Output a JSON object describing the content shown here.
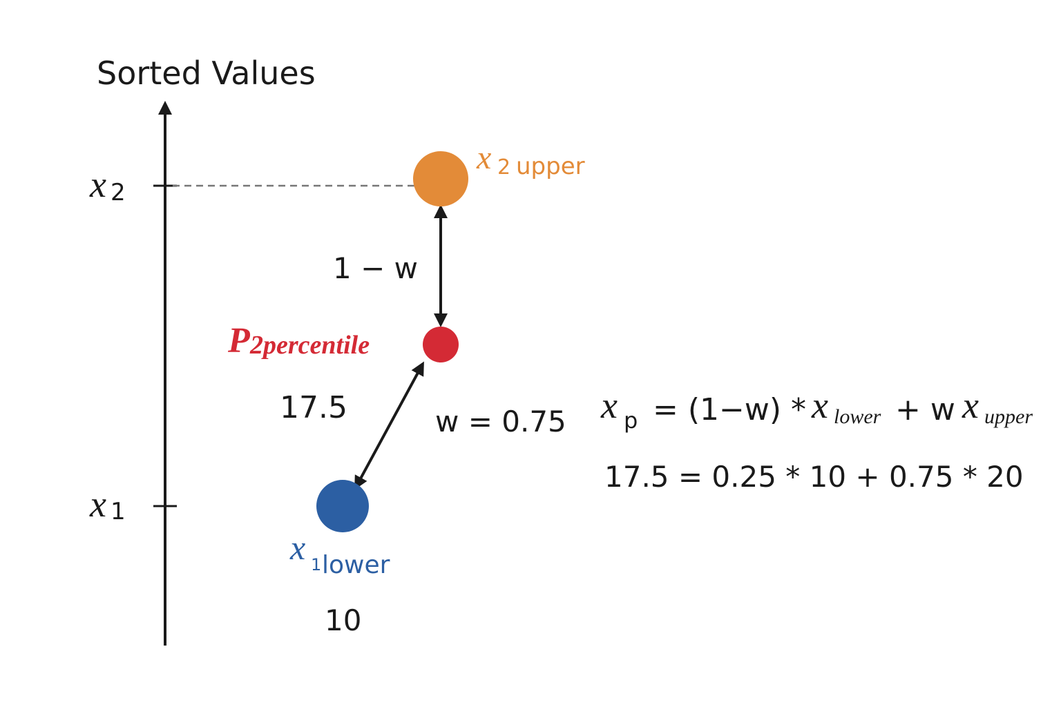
{
  "axis": {
    "label": "Sorted Values",
    "ticks": [
      {
        "symbol": "x",
        "sub": "2"
      },
      {
        "symbol": "x",
        "sub": "1"
      }
    ]
  },
  "points": {
    "upper": {
      "symbol": "x",
      "sub": "2",
      "tag": "upper"
    },
    "percentile": {
      "symbol": "P",
      "sub": "2percentile",
      "value": "17.5"
    },
    "lower": {
      "symbol": "x",
      "sub": "1",
      "tag": "lower",
      "value": "10"
    }
  },
  "weights": {
    "upper_gap": "1 − w",
    "lower_gap": "w = 0.75"
  },
  "formula": {
    "general": [
      "x",
      "p",
      "= (1−w) *",
      "x",
      "lower",
      "+ w",
      "x",
      "upper"
    ],
    "example": "17.5 = 0.25 * 10 + 0.75 * 20"
  }
}
